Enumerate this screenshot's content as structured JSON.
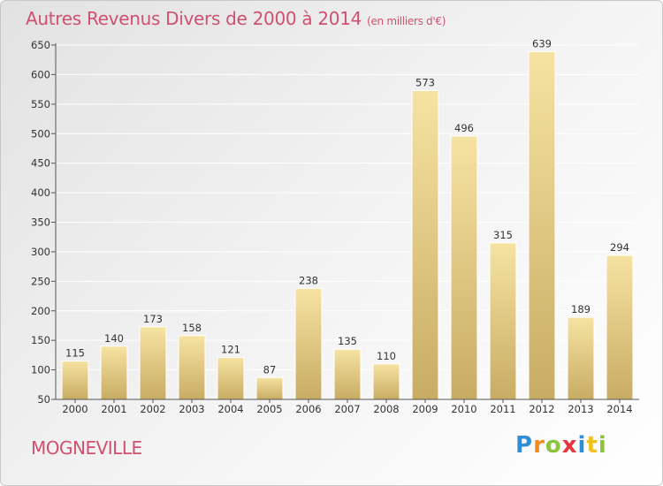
{
  "header": {
    "title": "Autres Revenus Divers de 2000 à 2014",
    "subtitle": "(en milliers d'€)"
  },
  "footer": {
    "commune": "MOGNEVILLE",
    "logo_letters": [
      "P",
      "r",
      "o",
      "x",
      "i",
      "t",
      "i"
    ],
    "logo_colors": [
      "#2e8fd8",
      "#f28a1c",
      "#8cc43c",
      "#e8343c",
      "#2e8fd8",
      "#f2c01c",
      "#8cc43c"
    ]
  },
  "chart_data": {
    "type": "bar",
    "title": "Autres Revenus Divers de 2000 à 2014",
    "subtitle": "(en milliers d'€)",
    "xlabel": "",
    "ylabel": "",
    "categories": [
      "2000",
      "2001",
      "2002",
      "2003",
      "2004",
      "2005",
      "2006",
      "2007",
      "2008",
      "2009",
      "2010",
      "2011",
      "2012",
      "2013",
      "2014"
    ],
    "values": [
      115,
      140,
      173,
      158,
      121,
      87,
      238,
      135,
      110,
      573,
      496,
      315,
      639,
      189,
      294
    ],
    "ylim": [
      50,
      650
    ],
    "yticks": [
      50,
      100,
      150,
      200,
      250,
      300,
      350,
      400,
      450,
      500,
      550,
      600,
      650
    ],
    "grid": true,
    "colors": {
      "bar_light": "#f6e3a2",
      "bar_dark": "#c8ac63",
      "grid": "#ffffff",
      "text": "#333333",
      "title": "#d0506f"
    }
  }
}
